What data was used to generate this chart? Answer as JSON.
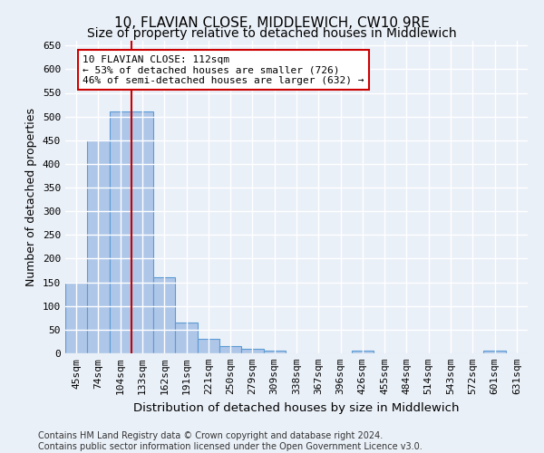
{
  "title": "10, FLAVIAN CLOSE, MIDDLEWICH, CW10 9RE",
  "subtitle": "Size of property relative to detached houses in Middlewich",
  "xlabel": "Distribution of detached houses by size in Middlewich",
  "ylabel": "Number of detached properties",
  "footer_line1": "Contains HM Land Registry data © Crown copyright and database right 2024.",
  "footer_line2": "Contains public sector information licensed under the Open Government Licence v3.0.",
  "categories": [
    "45sqm",
    "74sqm",
    "104sqm",
    "133sqm",
    "162sqm",
    "191sqm",
    "221sqm",
    "250sqm",
    "279sqm",
    "309sqm",
    "338sqm",
    "367sqm",
    "396sqm",
    "426sqm",
    "455sqm",
    "484sqm",
    "514sqm",
    "543sqm",
    "572sqm",
    "601sqm",
    "631sqm"
  ],
  "values": [
    150,
    450,
    510,
    510,
    160,
    65,
    30,
    15,
    10,
    5,
    0,
    0,
    0,
    5,
    0,
    0,
    0,
    0,
    0,
    5,
    0
  ],
  "bar_color": "#aec6e8",
  "bar_edge_color": "#5b9bd5",
  "bar_edge_width": 0.8,
  "vline_x": 2.5,
  "vline_color": "#cc0000",
  "annotation_text": "10 FLAVIAN CLOSE: 112sqm\n← 53% of detached houses are smaller (726)\n46% of semi-detached houses are larger (632) →",
  "annotation_box_color": "#ffffff",
  "annotation_box_edge_color": "#cc0000",
  "ylim": [
    0,
    660
  ],
  "yticks": [
    0,
    50,
    100,
    150,
    200,
    250,
    300,
    350,
    400,
    450,
    500,
    550,
    600,
    650
  ],
  "bg_color": "#eaf0f8",
  "grid_color": "#ffffff",
  "title_fontsize": 11,
  "axis_label_fontsize": 9,
  "tick_fontsize": 8,
  "footer_fontsize": 7
}
